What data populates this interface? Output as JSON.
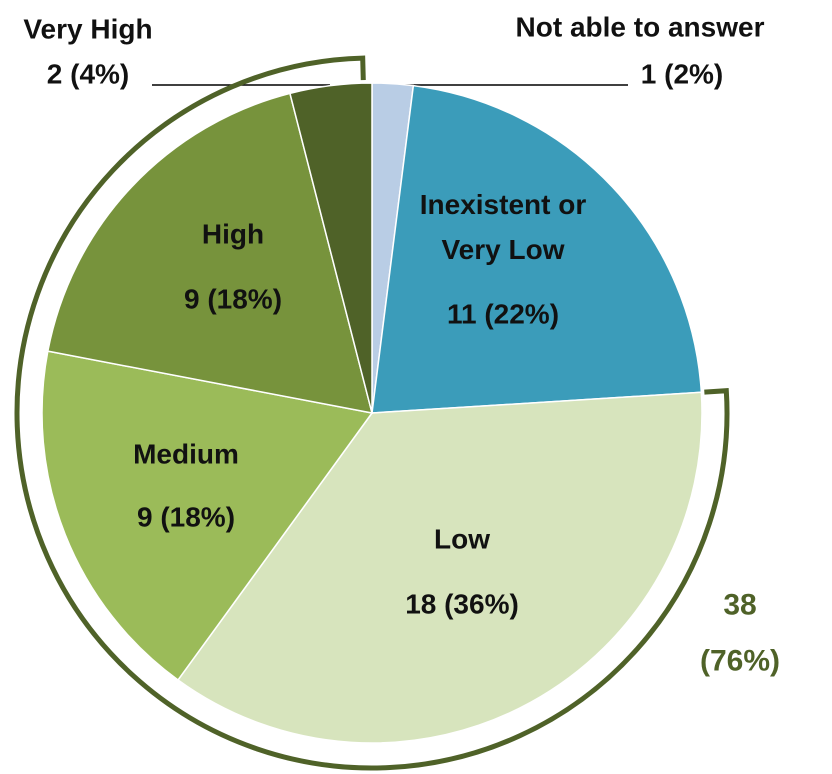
{
  "chart_data": {
    "type": "pie",
    "categories": [
      "Not able to answer",
      "Inexistent or Very Low",
      "Low",
      "Medium",
      "High",
      "Very High"
    ],
    "values": [
      1,
      11,
      18,
      9,
      9,
      2
    ],
    "value_labels": [
      "1 (2%)",
      "11 (22%)",
      "18 (36%)",
      "9 (18%)",
      "9 (18%)",
      "2 (4%)"
    ],
    "colors": [
      "#b9cde5",
      "#3b9cba",
      "#d7e4bd",
      "#9bbb59",
      "#77933c",
      "#4f6228"
    ],
    "annotation": {
      "lines": [
        "38",
        "(76%)"
      ],
      "color": "#4f6228"
    }
  }
}
